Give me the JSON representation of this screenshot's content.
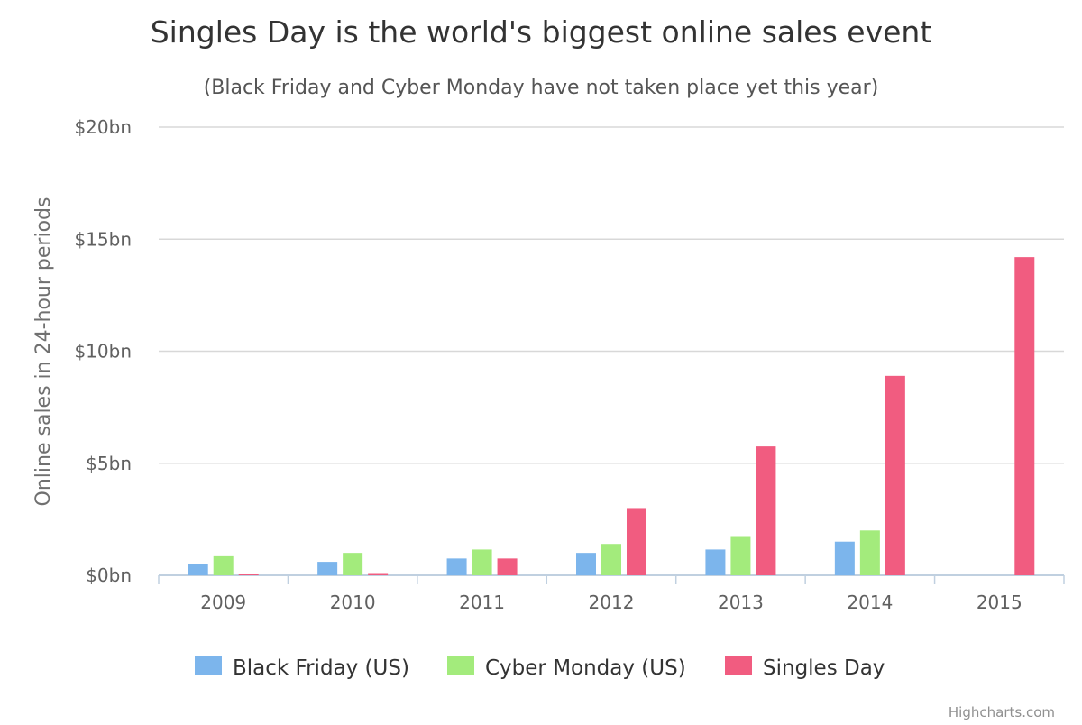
{
  "chart_data": {
    "type": "bar",
    "title": "Singles Day is the world's biggest online sales event",
    "subtitle": "(Black Friday and Cyber Monday have not taken place yet this year)",
    "ylabel": "Online sales in 24-hour periods",
    "xlabel": "",
    "categories": [
      "2009",
      "2010",
      "2011",
      "2012",
      "2013",
      "2014",
      "2015"
    ],
    "ylim": [
      0,
      20
    ],
    "yticks": [
      0,
      5,
      10,
      15,
      20
    ],
    "ytick_labels": [
      "$0bn",
      "$5bn",
      "$10bn",
      "$15bn",
      "$20bn"
    ],
    "grid": true,
    "legend_position": "bottom",
    "series": [
      {
        "name": "Black Friday (US)",
        "color": "#7cb5ec",
        "values": [
          0.5,
          0.6,
          0.75,
          1.0,
          1.15,
          1.5,
          null
        ]
      },
      {
        "name": "Cyber Monday (US)",
        "color": "#a3eb7c",
        "values": [
          0.85,
          1.0,
          1.15,
          1.4,
          1.75,
          2.0,
          null
        ]
      },
      {
        "name": "Singles Day",
        "color": "#f15c80",
        "values": [
          0.05,
          0.1,
          0.75,
          3.0,
          5.75,
          8.9,
          14.2
        ]
      }
    ]
  },
  "credits": "Highcharts.com"
}
